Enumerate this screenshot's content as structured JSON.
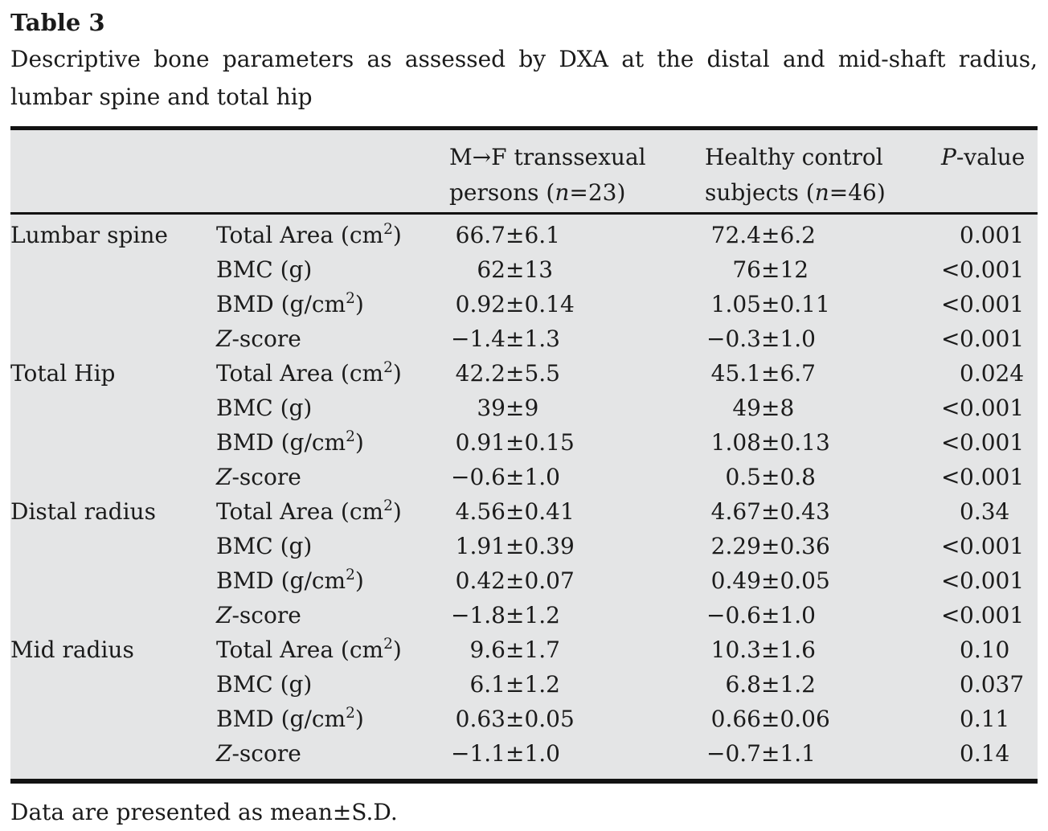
{
  "caption": {
    "label": "Table 3",
    "description": "Descriptive bone parameters as assessed by DXA at the distal and mid-shaft radius, lumbar spine and total hip"
  },
  "table": {
    "columns": {
      "region": "",
      "parameter": "",
      "group1": "M→F transsexual persons (*n*=23)",
      "group2": "Healthy control subjects (*n*=46)",
      "pvalue": "*P*-value"
    },
    "rows": [
      {
        "region": "Lumbar spine",
        "parameter": "Total Area (cm^2)",
        "group1": "66.7±6.1",
        "group2": "72.4±6.2",
        "p": "0.001"
      },
      {
        "region": "",
        "parameter": "BMC (g)",
        "group1": "62±13",
        "group2": "76±12",
        "p": "<0.001"
      },
      {
        "region": "",
        "parameter": "BMD (g/cm^2)",
        "group1": "0.92±0.14",
        "group2": "1.05±0.11",
        "p": "<0.001"
      },
      {
        "region": "",
        "parameter": "*Z*-score",
        "group1": "−1.4±1.3",
        "group2": "−0.3±1.0",
        "p": "<0.001"
      },
      {
        "region": "Total Hip",
        "parameter": "Total Area (cm^2)",
        "group1": "42.2±5.5",
        "group2": "45.1±6.7",
        "p": "0.024"
      },
      {
        "region": "",
        "parameter": "BMC (g)",
        "group1": "39±9",
        "group2": "49±8",
        "p": "<0.001"
      },
      {
        "region": "",
        "parameter": "BMD (g/cm^2)",
        "group1": "0.91±0.15",
        "group2": "1.08±0.13",
        "p": "<0.001"
      },
      {
        "region": "",
        "parameter": "*Z*-score",
        "group1": "−0.6±1.0",
        "group2": "0.5±0.8",
        "p": "<0.001"
      },
      {
        "region": "Distal radius",
        "parameter": "Total Area (cm^2)",
        "group1": "4.56±0.41",
        "group2": "4.67±0.43",
        "p": "0.34"
      },
      {
        "region": "",
        "parameter": "BMC (g)",
        "group1": "1.91±0.39",
        "group2": "2.29±0.36",
        "p": "<0.001"
      },
      {
        "region": "",
        "parameter": "BMD (g/cm^2)",
        "group1": "0.42±0.07",
        "group2": "0.49±0.05",
        "p": "<0.001"
      },
      {
        "region": "",
        "parameter": "*Z*-score",
        "group1": "−1.8±1.2",
        "group2": "−0.6±1.0",
        "p": "<0.001"
      },
      {
        "region": "Mid radius",
        "parameter": "Total Area (cm^2)",
        "group1": "9.6±1.7",
        "group2": "10.3±1.6",
        "p": "0.10"
      },
      {
        "region": "",
        "parameter": "BMC (g)",
        "group1": "6.1±1.2",
        "group2": "6.8±1.2",
        "p": "0.037"
      },
      {
        "region": "",
        "parameter": "BMD (g/cm^2)",
        "group1": "0.63±0.05",
        "group2": "0.66±0.06",
        "p": "0.11"
      },
      {
        "region": "",
        "parameter": "*Z*-score",
        "group1": "−1.1±1.0",
        "group2": "−0.7±1.1",
        "p": "0.14"
      }
    ]
  },
  "footnote": "Data are presented as mean±S.D.",
  "colors": {
    "table_background": "#e4e5e6",
    "rule": "#121212",
    "text": "#1b1b1b",
    "page_background": "#ffffff"
  }
}
